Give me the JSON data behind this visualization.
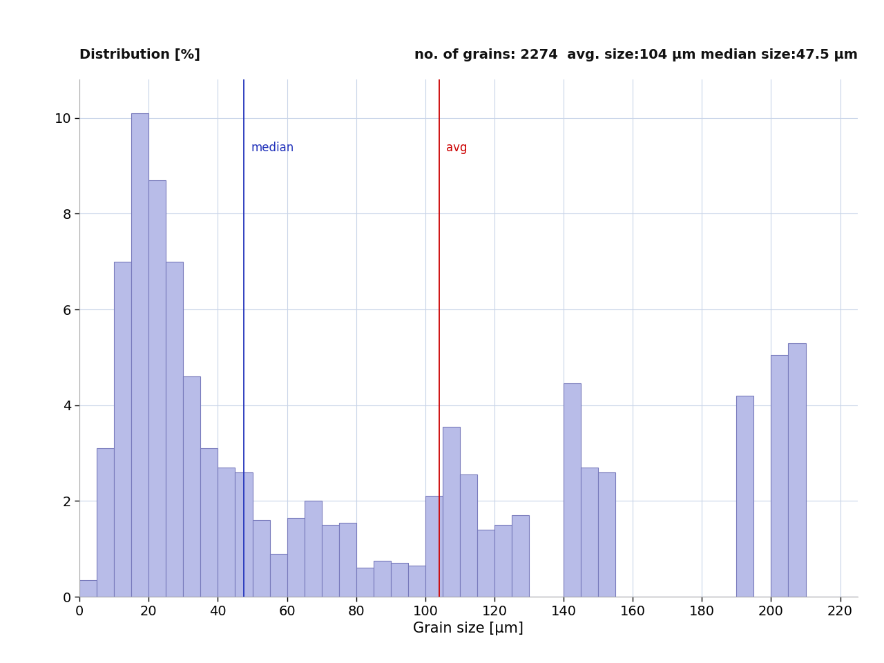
{
  "title_left": "Distribution [%]",
  "title_right": "no. of grains: 2274  avg. size:104 μm median size:47.5 μm",
  "xlabel": "Grain size [μm]",
  "xlim": [
    0,
    225
  ],
  "ylim": [
    0,
    10.8
  ],
  "avg_line": 104,
  "median_line": 47.5,
  "avg_label": "avg",
  "median_label": "median",
  "avg_color": "#cc0000",
  "median_color": "#2233bb",
  "bar_color": "#b8bce8",
  "bar_edgecolor": "#7779bb",
  "background_color": "#ffffff",
  "grid_color": "#c8d4e8",
  "bin_width": 5,
  "bin_starts": [
    0,
    5,
    10,
    15,
    20,
    25,
    30,
    35,
    40,
    45,
    50,
    55,
    60,
    65,
    70,
    75,
    80,
    85,
    90,
    95,
    100,
    105,
    110,
    115,
    120,
    125,
    130,
    135,
    140,
    145,
    150,
    155,
    160,
    165,
    170,
    175,
    180,
    185,
    190,
    195,
    200,
    205,
    210,
    215,
    220
  ],
  "bar_heights": [
    0.35,
    3.1,
    7.0,
    10.1,
    8.7,
    7.0,
    4.6,
    3.1,
    2.7,
    2.6,
    1.6,
    0.9,
    1.65,
    2.0,
    1.5,
    1.55,
    0.6,
    0.75,
    0.7,
    0.65,
    2.1,
    3.55,
    2.55,
    1.4,
    1.5,
    1.7,
    0.0,
    0.0,
    4.45,
    2.7,
    2.6,
    0.0,
    0.0,
    0.0,
    0.0,
    0.0,
    0.0,
    0.0,
    4.2,
    0.0,
    5.05,
    5.3,
    0.0,
    0.0,
    0.0
  ],
  "yticks": [
    0,
    2,
    4,
    6,
    8,
    10
  ],
  "xticks": [
    0,
    20,
    40,
    60,
    80,
    100,
    120,
    140,
    160,
    180,
    200,
    220
  ],
  "title_fontsize": 14,
  "label_fontsize": 15,
  "tick_fontsize": 14,
  "line_label_fontsize": 12
}
